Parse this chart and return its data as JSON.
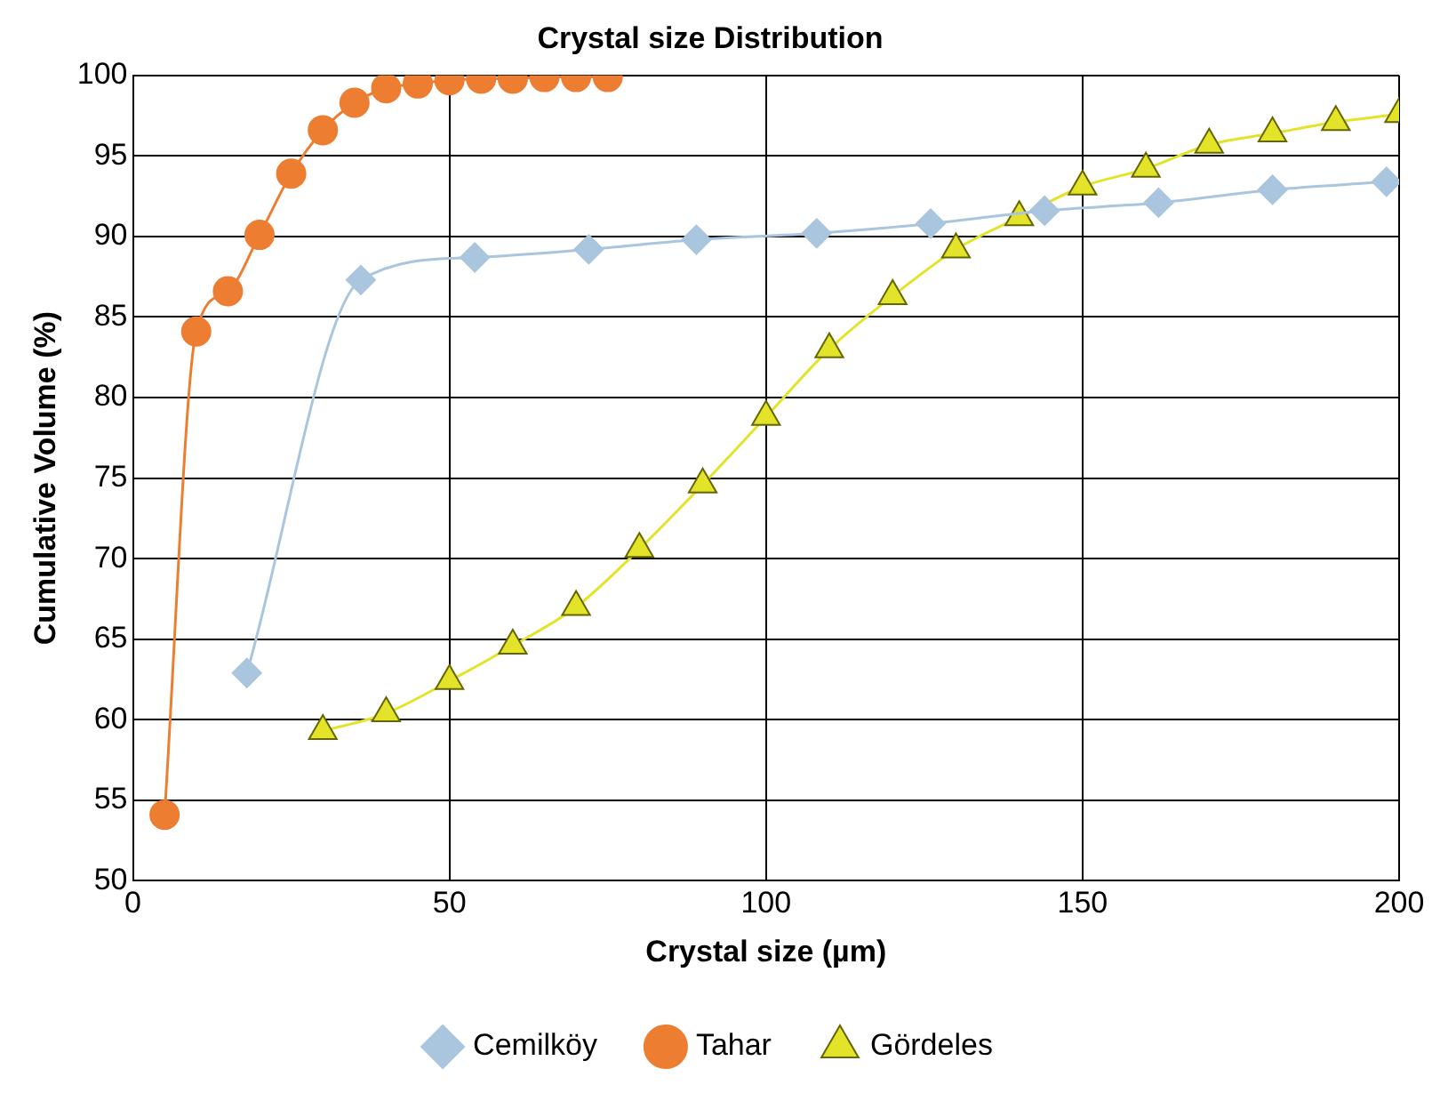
{
  "chart_data": {
    "type": "line",
    "title": "Crystal size Distribution",
    "xlabel": "Crystal size (µm)",
    "ylabel": "Cumulative Volume (%)",
    "xlim": [
      0,
      200
    ],
    "xticks": [
      0,
      50,
      100,
      150,
      200
    ],
    "ylim": [
      50,
      100
    ],
    "yticks": [
      50,
      55,
      60,
      65,
      70,
      75,
      80,
      85,
      90,
      95,
      100
    ],
    "grid": true,
    "legend": "bottom",
    "series": [
      {
        "name": "Cemilköy",
        "color": "#a9c6de",
        "marker": "diamond",
        "x": [
          18,
          36,
          54,
          72,
          89,
          108,
          126,
          144,
          162,
          180,
          198
        ],
        "values": [
          62.9,
          87.3,
          88.7,
          89.2,
          89.8,
          90.2,
          90.8,
          91.6,
          92.1,
          92.9,
          93.4
        ]
      },
      {
        "name": "Tahar",
        "color": "#ed7d31",
        "marker": "circle",
        "x": [
          5,
          10,
          15,
          20,
          25,
          30,
          35,
          40,
          45,
          50,
          55,
          60,
          65,
          70,
          75
        ],
        "values": [
          54.1,
          84.1,
          86.6,
          90.1,
          93.9,
          96.6,
          98.3,
          99.2,
          99.5,
          99.7,
          99.8,
          99.8,
          99.9,
          99.9,
          99.9
        ]
      },
      {
        "name": "Gördeles",
        "color": "#e3e32a",
        "marker": "triangle",
        "x": [
          30,
          40,
          50,
          60,
          70,
          80,
          90,
          100,
          110,
          120,
          130,
          140,
          150,
          160,
          170,
          180,
          190,
          200
        ],
        "values": [
          59.3,
          60.4,
          62.4,
          64.6,
          67.0,
          70.6,
          74.6,
          78.8,
          83.0,
          86.3,
          89.2,
          91.2,
          93.1,
          94.2,
          95.7,
          96.4,
          97.1,
          97.6
        ]
      }
    ]
  }
}
